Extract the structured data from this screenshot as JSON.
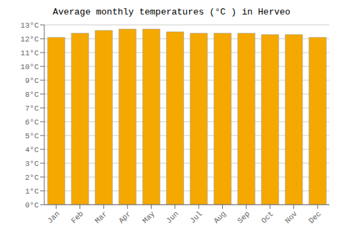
{
  "chart_data": {
    "type": "bar",
    "title": "Average monthly temperatures (°C ) in Herveo",
    "categories": [
      "Jan",
      "Feb",
      "Mar",
      "Apr",
      "May",
      "Jun",
      "Jul",
      "Aug",
      "Sep",
      "Oct",
      "Nov",
      "Dec"
    ],
    "values": [
      12.1,
      12.4,
      12.6,
      12.7,
      12.7,
      12.5,
      12.4,
      12.4,
      12.4,
      12.3,
      12.3,
      12.1
    ],
    "color": "#F5A800",
    "ylim": [
      0,
      13
    ],
    "yticks": [
      {
        "value": 0,
        "label": "0°C"
      },
      {
        "value": 1,
        "label": "1°C"
      },
      {
        "value": 2,
        "label": "2°C"
      },
      {
        "value": 3,
        "label": "3°C"
      },
      {
        "value": 4,
        "label": "4°C"
      },
      {
        "value": 5,
        "label": "5°C"
      },
      {
        "value": 6,
        "label": "6°C"
      },
      {
        "value": 7,
        "label": "7°C"
      },
      {
        "value": 8,
        "label": "8°C"
      },
      {
        "value": 9,
        "label": "9°C"
      },
      {
        "value": 10,
        "label": "10°C"
      },
      {
        "value": 11,
        "label": "11°C"
      },
      {
        "value": 12,
        "label": "12°C"
      },
      {
        "value": 13,
        "label": "13°C"
      }
    ],
    "grid": true
  }
}
